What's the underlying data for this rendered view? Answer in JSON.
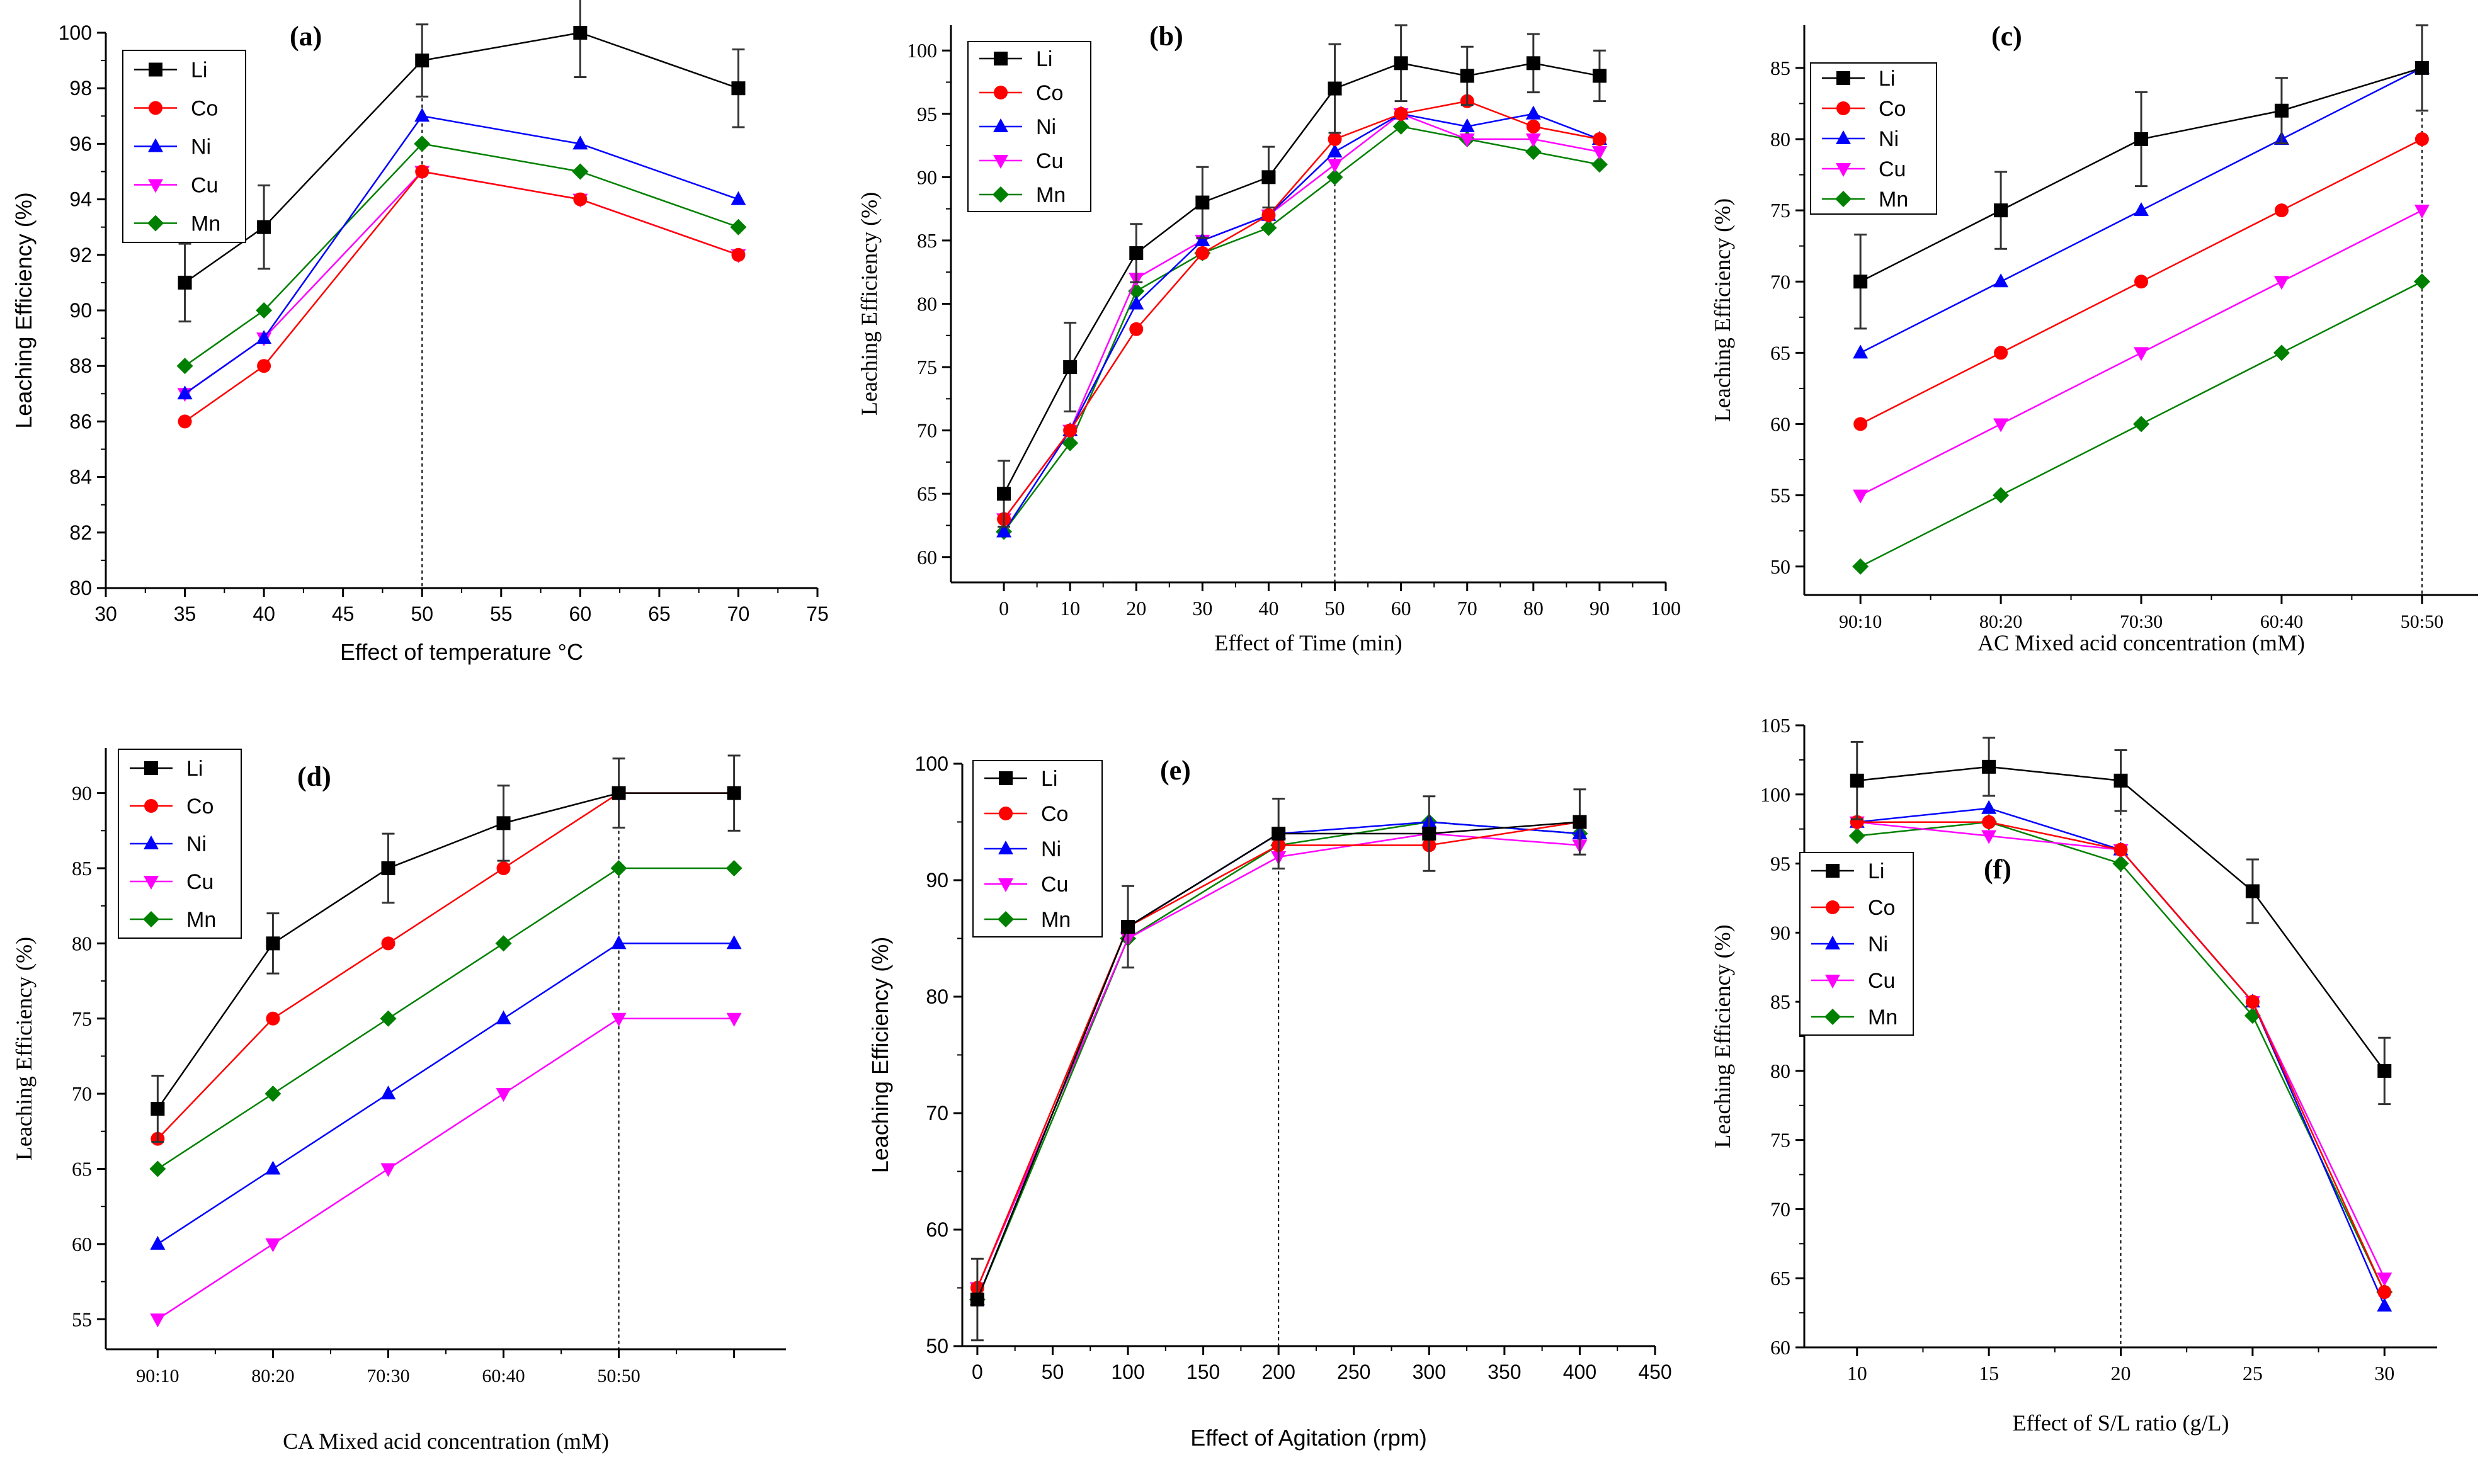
{
  "figure": {
    "panels_count": 6
  },
  "chart_data": [
    {
      "type": "line",
      "panel_label": "(a)",
      "xlabel": "Effect of temperature °C",
      "ylabel": "Leaching Efficiency (%)",
      "x_numeric": true,
      "x": [
        35,
        40,
        50,
        60,
        70
      ],
      "xlim": [
        30,
        75
      ],
      "xticks": [
        30,
        35,
        40,
        45,
        50,
        55,
        60,
        65,
        70,
        75
      ],
      "ylim": [
        80,
        100
      ],
      "yticks": [
        80,
        82,
        84,
        86,
        88,
        90,
        92,
        94,
        96,
        98,
        100
      ],
      "vline_x": 50,
      "legend_position": "top-left",
      "series": [
        {
          "name": "Li",
          "values": [
            91,
            93,
            99,
            100,
            98
          ],
          "error": [
            1.4,
            1.5,
            1.3,
            1.6,
            1.4
          ]
        },
        {
          "name": "Co",
          "values": [
            86,
            88,
            95,
            94,
            92
          ]
        },
        {
          "name": "Ni",
          "values": [
            87,
            89,
            97,
            96,
            94
          ]
        },
        {
          "name": "Cu",
          "values": [
            87,
            89,
            95,
            94,
            92
          ]
        },
        {
          "name": "Mn",
          "values": [
            88,
            90,
            96,
            95,
            93
          ]
        }
      ]
    },
    {
      "type": "line",
      "panel_label": "(b)",
      "xlabel": "Effect of Time (min)",
      "ylabel": "Leaching Efficiency (%)",
      "x_numeric": true,
      "x": [
        0,
        10,
        20,
        30,
        40,
        50,
        60,
        70,
        80,
        90
      ],
      "xlim": [
        -8,
        100
      ],
      "xticks": [
        0,
        10,
        20,
        30,
        40,
        50,
        60,
        70,
        80,
        90,
        100
      ],
      "ylim": [
        58,
        102
      ],
      "yticks": [
        60,
        65,
        70,
        75,
        80,
        85,
        90,
        95,
        100
      ],
      "vline_x": 50,
      "legend_position": "top-left",
      "series": [
        {
          "name": "Li",
          "values": [
            65,
            75,
            84,
            88,
            90,
            97,
            99,
            98,
            99,
            98
          ],
          "error": [
            2.6,
            3.5,
            2.3,
            2.8,
            2.4,
            3.5,
            3.0,
            2.3,
            2.3,
            2.0
          ]
        },
        {
          "name": "Co",
          "values": [
            63,
            70,
            78,
            84,
            87,
            93,
            95,
            96,
            94,
            93
          ]
        },
        {
          "name": "Ni",
          "values": [
            62,
            70,
            80,
            85,
            87,
            92,
            95,
            94,
            95,
            93
          ]
        },
        {
          "name": "Cu",
          "values": [
            63,
            70,
            82,
            85,
            87,
            91,
            95,
            93,
            93,
            92
          ]
        },
        {
          "name": "Mn",
          "values": [
            62,
            69,
            81,
            84,
            86,
            90,
            94,
            93,
            92,
            91
          ]
        }
      ]
    },
    {
      "type": "line",
      "panel_label": "(c)",
      "xlabel": "AC Mixed acid concentration (mM)",
      "ylabel": "Leaching Efficiency (%)",
      "x_numeric": false,
      "categories": [
        "90:10",
        "80:20",
        "70:30",
        "60:40",
        "50:50"
      ],
      "xlim": [
        -0.4,
        4.4
      ],
      "ylim": [
        48,
        88
      ],
      "yticks": [
        50,
        55,
        60,
        65,
        70,
        75,
        80,
        85
      ],
      "vline_x": 4,
      "legend_position": "top-left",
      "series": [
        {
          "name": "Li",
          "values": [
            70,
            75,
            80,
            82,
            85
          ],
          "error": [
            3.3,
            2.7,
            3.3,
            2.3,
            3.0
          ]
        },
        {
          "name": "Co",
          "values": [
            60,
            65,
            70,
            75,
            80
          ]
        },
        {
          "name": "Ni",
          "values": [
            65,
            70,
            75,
            80,
            85
          ]
        },
        {
          "name": "Cu",
          "values": [
            55,
            60,
            65,
            70,
            75
          ]
        },
        {
          "name": "Mn",
          "values": [
            50,
            55,
            60,
            65,
            70
          ]
        }
      ]
    },
    {
      "type": "line",
      "panel_label": "(d)",
      "xlabel": "CA Mixed acid concentration (mM)",
      "ylabel": "Leaching Efficiency (%)",
      "x_numeric": false,
      "categories": [
        "90:10",
        "80:20",
        "70:30",
        "60:40",
        "50:50",
        ""
      ],
      "xlim": [
        -0.45,
        5.45
      ],
      "ylim": [
        53,
        93
      ],
      "yticks": [
        55,
        60,
        65,
        70,
        75,
        80,
        85,
        90
      ],
      "vline_x": 4,
      "legend_position": "top-left",
      "series": [
        {
          "name": "Li",
          "values": [
            69,
            80,
            85,
            88,
            90,
            90
          ],
          "error": [
            2.2,
            2.0,
            2.3,
            2.5,
            2.3,
            2.5
          ]
        },
        {
          "name": "Co",
          "values": [
            67,
            75,
            80,
            85,
            90,
            90
          ]
        },
        {
          "name": "Ni",
          "values": [
            60,
            65,
            70,
            75,
            80,
            80
          ]
        },
        {
          "name": "Cu",
          "values": [
            55,
            60,
            65,
            70,
            75,
            75
          ]
        },
        {
          "name": "Mn",
          "values": [
            65,
            70,
            75,
            80,
            85,
            85
          ]
        }
      ]
    },
    {
      "type": "line",
      "panel_label": "(e)",
      "xlabel": "Effect of Agitation (rpm)",
      "ylabel": "Leaching Efficiency (%)",
      "x_numeric": true,
      "x": [
        0,
        100,
        200,
        300,
        400
      ],
      "xlim": [
        -10,
        450
      ],
      "xticks": [
        0,
        50,
        100,
        150,
        200,
        250,
        300,
        350,
        400,
        450
      ],
      "ylim": [
        50,
        100
      ],
      "yticks": [
        50,
        60,
        70,
        80,
        90,
        100
      ],
      "vline_x": 200,
      "legend_position": "top-left",
      "series": [
        {
          "name": "Li",
          "values": [
            54,
            86,
            94,
            94,
            95
          ],
          "error": [
            3.5,
            3.5,
            3.0,
            3.2,
            2.8
          ]
        },
        {
          "name": "Co",
          "values": [
            55,
            86,
            93,
            93,
            95
          ]
        },
        {
          "name": "Ni",
          "values": [
            54,
            86,
            94,
            95,
            94
          ]
        },
        {
          "name": "Cu",
          "values": [
            55,
            85,
            92,
            94,
            93
          ]
        },
        {
          "name": "Mn",
          "values": [
            54,
            85,
            93,
            95,
            94
          ]
        }
      ]
    },
    {
      "type": "line",
      "panel_label": "(f)",
      "xlabel": "Effect of S/L ratio (g/L)",
      "ylabel": "Leaching Efficiency (%)",
      "x_numeric": true,
      "x": [
        10,
        15,
        20,
        25,
        30
      ],
      "xlim": [
        8,
        32
      ],
      "xticks": [
        10,
        15,
        20,
        25,
        30
      ],
      "ylim": [
        60,
        105
      ],
      "yticks": [
        60,
        65,
        70,
        75,
        80,
        85,
        90,
        95,
        100,
        105
      ],
      "vline_x": 20,
      "legend_position": "left",
      "series": [
        {
          "name": "Li",
          "values": [
            101,
            102,
            101,
            93,
            80
          ],
          "error": [
            2.8,
            2.1,
            2.2,
            2.3,
            2.4
          ]
        },
        {
          "name": "Co",
          "values": [
            98,
            98,
            96,
            85,
            64
          ]
        },
        {
          "name": "Ni",
          "values": [
            98,
            99,
            96,
            85,
            63
          ]
        },
        {
          "name": "Cu",
          "values": [
            98,
            97,
            96,
            85,
            65
          ]
        },
        {
          "name": "Mn",
          "values": [
            97,
            98,
            95,
            84,
            64
          ]
        }
      ]
    }
  ],
  "series_styles": {
    "Li": {
      "color": "#000000",
      "marker": "square"
    },
    "Co": {
      "color": "#ff0000",
      "marker": "circle"
    },
    "Ni": {
      "color": "#0000ff",
      "marker": "triangle-up"
    },
    "Cu": {
      "color": "#ff00ff",
      "marker": "triangle-down"
    },
    "Mn": {
      "color": "#008000",
      "marker": "diamond"
    }
  }
}
